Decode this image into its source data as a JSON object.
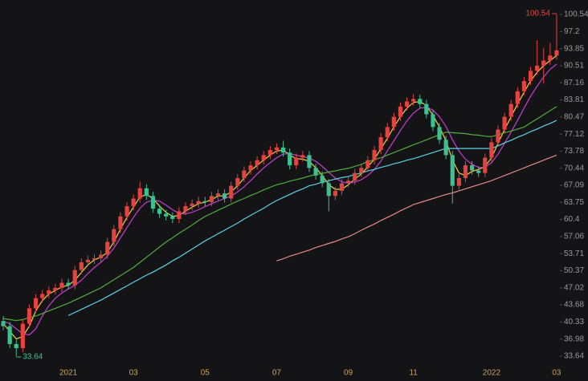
{
  "chart_data": {
    "type": "candlestick",
    "categories": [
      null,
      null,
      null,
      null,
      null,
      null,
      null,
      null,
      null,
      null,
      "2021",
      null,
      null,
      null,
      null,
      null,
      null,
      null,
      null,
      null,
      "03",
      null,
      null,
      null,
      null,
      null,
      null,
      null,
      null,
      null,
      null,
      "05",
      null,
      null,
      null,
      null,
      null,
      null,
      null,
      null,
      null,
      null,
      "07",
      null,
      null,
      null,
      null,
      null,
      null,
      null,
      null,
      null,
      null,
      "09",
      null,
      null,
      null,
      null,
      null,
      null,
      null,
      null,
      null,
      "11",
      null,
      null,
      null,
      null,
      null,
      null,
      null,
      null,
      null,
      null,
      null,
      "2022",
      null,
      null,
      null,
      null,
      null,
      null,
      null,
      null,
      null,
      "03"
    ],
    "open": [
      40.5,
      39.5,
      36.0,
      35.2,
      40.0,
      43.0,
      45.0,
      45.8,
      46.5,
      47.0,
      48.0,
      47.5,
      50.5,
      52.0,
      52.5,
      52.8,
      53.5,
      56.0,
      58.5,
      61.0,
      63.0,
      64.5,
      66.5,
      65.0,
      62.5,
      61.5,
      61.0,
      60.5,
      62.0,
      63.0,
      63.5,
      64.0,
      63.8,
      65.0,
      65.5,
      64.5,
      67.0,
      68.5,
      70.0,
      71.0,
      72.0,
      73.0,
      74.0,
      74.5,
      73.5,
      71.0,
      72.5,
      73.0,
      70.5,
      69.0,
      67.5,
      65.0,
      66.0,
      67.5,
      68.0,
      69.5,
      70.5,
      72.0,
      74.0,
      76.5,
      78.5,
      80.5,
      82.5,
      83.5,
      84.0,
      83.0,
      81.0,
      78.5,
      76.0,
      73.0,
      67.0,
      68.5,
      71.0,
      70.0,
      69.5,
      72.5,
      75.5,
      78.0,
      80.5,
      83.0,
      85.5,
      87.5,
      89.5,
      90.5,
      91.5,
      92.5
    ],
    "high": [
      41.5,
      40.3,
      36.8,
      40.8,
      43.8,
      45.8,
      46.6,
      47.3,
      47.8,
      48.8,
      48.8,
      51.3,
      52.8,
      53.3,
      53.6,
      54.3,
      56.8,
      59.3,
      61.8,
      63.8,
      65.3,
      67.8,
      67.3,
      65.8,
      63.3,
      62.3,
      61.8,
      62.8,
      63.8,
      64.3,
      64.8,
      64.8,
      65.8,
      66.3,
      66.3,
      67.8,
      69.3,
      70.8,
      71.8,
      72.8,
      73.8,
      74.8,
      75.3,
      75.8,
      74.3,
      73.3,
      73.8,
      73.8,
      71.3,
      69.8,
      68.3,
      66.8,
      68.3,
      68.8,
      70.3,
      71.3,
      72.8,
      74.8,
      77.3,
      79.3,
      81.3,
      83.3,
      84.3,
      85.0,
      84.8,
      83.8,
      81.8,
      79.3,
      76.8,
      73.8,
      69.3,
      71.8,
      71.8,
      70.8,
      73.3,
      76.3,
      78.8,
      81.3,
      83.8,
      86.3,
      88.3,
      90.3,
      95.5,
      94.0,
      95.0,
      100.54
    ],
    "low": [
      38.7,
      35.2,
      33.64,
      34.4,
      39.2,
      42.2,
      44.2,
      45.0,
      45.7,
      46.2,
      46.7,
      46.7,
      49.7,
      51.2,
      51.7,
      52.0,
      52.7,
      55.2,
      57.7,
      60.2,
      62.2,
      63.7,
      64.2,
      61.7,
      60.7,
      60.2,
      59.7,
      59.7,
      61.2,
      62.2,
      62.7,
      63.0,
      63.0,
      64.2,
      63.7,
      63.7,
      66.2,
      67.7,
      69.2,
      70.2,
      71.2,
      72.2,
      73.2,
      72.7,
      70.2,
      70.2,
      71.7,
      69.7,
      68.2,
      66.7,
      62.0,
      64.2,
      65.2,
      66.7,
      67.2,
      68.7,
      69.7,
      71.2,
      73.2,
      75.7,
      77.7,
      79.7,
      81.7,
      82.7,
      82.2,
      80.2,
      77.7,
      75.2,
      72.2,
      63.5,
      66.2,
      67.7,
      69.2,
      68.7,
      68.7,
      71.7,
      74.7,
      77.2,
      79.7,
      82.2,
      84.7,
      86.7,
      88.7,
      87.0,
      90.7,
      91.7
    ],
    "close": [
      39.5,
      36.0,
      35.2,
      40.0,
      43.0,
      45.0,
      45.8,
      46.5,
      47.0,
      48.0,
      47.5,
      50.5,
      52.0,
      52.5,
      52.8,
      53.5,
      56.0,
      58.5,
      61.0,
      63.0,
      64.5,
      66.5,
      65.0,
      62.5,
      61.5,
      61.0,
      60.5,
      62.0,
      63.0,
      63.5,
      64.0,
      63.8,
      65.0,
      65.5,
      64.5,
      67.0,
      68.5,
      70.0,
      71.0,
      72.0,
      73.0,
      74.0,
      74.5,
      73.5,
      71.0,
      72.5,
      73.0,
      70.5,
      69.0,
      67.5,
      65.0,
      66.0,
      67.5,
      68.0,
      69.5,
      70.5,
      72.0,
      74.0,
      76.5,
      78.5,
      80.5,
      82.5,
      83.5,
      84.0,
      83.0,
      81.0,
      78.5,
      76.0,
      73.0,
      67.0,
      68.5,
      71.0,
      70.0,
      69.5,
      72.5,
      75.5,
      78.0,
      80.5,
      83.0,
      85.5,
      87.5,
      89.5,
      90.5,
      91.5,
      92.5,
      93.5
    ],
    "up_color": "#e5433d",
    "down_color": "#3cc08f",
    "series": [
      {
        "color": "#e8d34a",
        "values": [
          40,
          38.5,
          37,
          37.5,
          39.5,
          42.5,
          44.5,
          45.8,
          46.5,
          47.2,
          47.5,
          48.5,
          50,
          51.5,
          52.5,
          53,
          54,
          56,
          58.5,
          60.8,
          62.8,
          64.8,
          65.3,
          64.5,
          63,
          61.8,
          61,
          61.2,
          62,
          62.8,
          63.5,
          63.8,
          64.3,
          65,
          65,
          65.8,
          67,
          68.5,
          70,
          71,
          72,
          73,
          73.8,
          74,
          73,
          72.3,
          72.2,
          71.8,
          70.5,
          69,
          67.2,
          66.3,
          66.3,
          67.2,
          68.3,
          69.3,
          70.7,
          72.2,
          74.2,
          76.3,
          78.5,
          80.5,
          82.2,
          83.3,
          83.5,
          82.7,
          80.8,
          78.5,
          75.8,
          72,
          69.5,
          69,
          69.8,
          70.2,
          70.7,
          72.5,
          75.3,
          78,
          80.5,
          83,
          85.3,
          87.5,
          89.2,
          90.5,
          91.5,
          92.5
        ]
      },
      {
        "color": "#c43fcf",
        "values": [
          40.5,
          40,
          39,
          38,
          37.8,
          39,
          41.5,
          43.5,
          45,
          46,
          46.8,
          47.5,
          48.5,
          49.8,
          51,
          52,
          53.2,
          54.8,
          56.8,
          58.8,
          60.8,
          62.6,
          63.8,
          64.2,
          64,
          63.2,
          62.3,
          61.6,
          61.5,
          61.8,
          62.3,
          62.9,
          63.5,
          64,
          64.5,
          65,
          65.8,
          66.8,
          68,
          69.3,
          70.5,
          71.5,
          72.5,
          73.2,
          73.3,
          73,
          72.7,
          72.4,
          71.8,
          70.8,
          69.6,
          68.5,
          67.8,
          67.5,
          67.7,
          68.2,
          69,
          70.2,
          71.8,
          73.8,
          75.8,
          77.8,
          79.7,
          81.2,
          82.2,
          82.4,
          81.8,
          80.5,
          78.6,
          76,
          73.8,
          72.2,
          71.2,
          70.6,
          70.6,
          71.5,
          73.2,
          75.3,
          77.5,
          79.8,
          82.2,
          84.5,
          86.5,
          88.3,
          89.8,
          90.8
        ]
      },
      {
        "color": "#4fae3c",
        "values": [
          41,
          40.8,
          40.6,
          40.8,
          41.2,
          41.5,
          42,
          42.5,
          43,
          43.5,
          44,
          44.6,
          45.2,
          45.8,
          46.4,
          47,
          47.8,
          48.6,
          49.4,
          50.2,
          51,
          52,
          53,
          54,
          55,
          56,
          56.8,
          57.7,
          58.5,
          59.3,
          60.2,
          61,
          61.6,
          62.2,
          62.8,
          63.4,
          64,
          64.5,
          65.1,
          65.6,
          66.2,
          66.7,
          67.2,
          67.5,
          67.9,
          68.2,
          68.5,
          68.9,
          69.2,
          69.4,
          69.7,
          69.9,
          70.2,
          70.4,
          70.8,
          71.2,
          71.7,
          72.1,
          72.5,
          73,
          73.5,
          74,
          74.5,
          75,
          75.5,
          76,
          76.5,
          77,
          77.5,
          77.4,
          77.3,
          77.2,
          77,
          76.9,
          76.7,
          76.6,
          77,
          77.4,
          77.7,
          78.1,
          78.5,
          79.3,
          80.1,
          80.9,
          81.7,
          82.5
        ]
      },
      {
        "color": "#5cd2e6",
        "values": [
          null,
          null,
          null,
          null,
          null,
          null,
          null,
          null,
          null,
          null,
          41.6,
          42.2,
          42.8,
          43.4,
          44,
          44.6,
          45.3,
          46,
          46.7,
          47.4,
          48.1,
          48.8,
          49.5,
          50.1,
          50.8,
          51.5,
          52.3,
          53,
          53.8,
          54.6,
          55.4,
          56.2,
          56.9,
          57.6,
          58.3,
          59,
          59.7,
          60.5,
          61.2,
          61.9,
          62.6,
          63.4,
          64.1,
          64.7,
          65.3,
          65.9,
          66.4,
          67,
          67.3,
          67.7,
          68,
          68.3,
          68.6,
          68.8,
          69.2,
          69.5,
          69.9,
          70.2,
          70.6,
          70.9,
          71.3,
          71.6,
          72,
          72.3,
          72.7,
          73.1,
          73.5,
          73.9,
          74.3,
          74.3,
          74.3,
          74.3,
          74.3,
          74.3,
          74.3,
          74.3,
          74.8,
          75.4,
          75.9,
          76.5,
          77,
          77.6,
          78.1,
          78.7,
          79.2,
          79.8
        ]
      },
      {
        "color": "#e58a86",
        "values": [
          null,
          null,
          null,
          null,
          null,
          null,
          null,
          null,
          null,
          null,
          null,
          null,
          null,
          null,
          null,
          null,
          null,
          null,
          null,
          null,
          null,
          null,
          null,
          null,
          null,
          null,
          null,
          null,
          null,
          null,
          null,
          null,
          null,
          null,
          null,
          null,
          null,
          null,
          null,
          null,
          null,
          null,
          52.3,
          52.7,
          53.2,
          53.6,
          54,
          54.4,
          54.9,
          55.3,
          55.7,
          56.1,
          56.6,
          57,
          57.6,
          58.3,
          58.9,
          59.5,
          60.2,
          60.8,
          61.4,
          62.1,
          62.7,
          63.3,
          63.7,
          64.1,
          64.5,
          64.9,
          65.3,
          65.6,
          66,
          66.4,
          66.8,
          67.2,
          67.6,
          68,
          68.5,
          69,
          69.5,
          70,
          70.5,
          71,
          71.5,
          72,
          72.5,
          73
        ]
      }
    ],
    "high_label": "100.54",
    "low_label": "33.64",
    "ylim": [
      31.91,
      103.37
    ],
    "yticks": [
      33.64,
      36.98,
      40.33,
      43.68,
      47.02,
      50.37,
      53.71,
      57.06,
      60.4,
      63.75,
      67.09,
      70.44,
      73.78,
      77.12,
      80.47,
      83.81,
      87.16,
      90.51,
      93.85,
      97.2,
      100.54
    ]
  }
}
